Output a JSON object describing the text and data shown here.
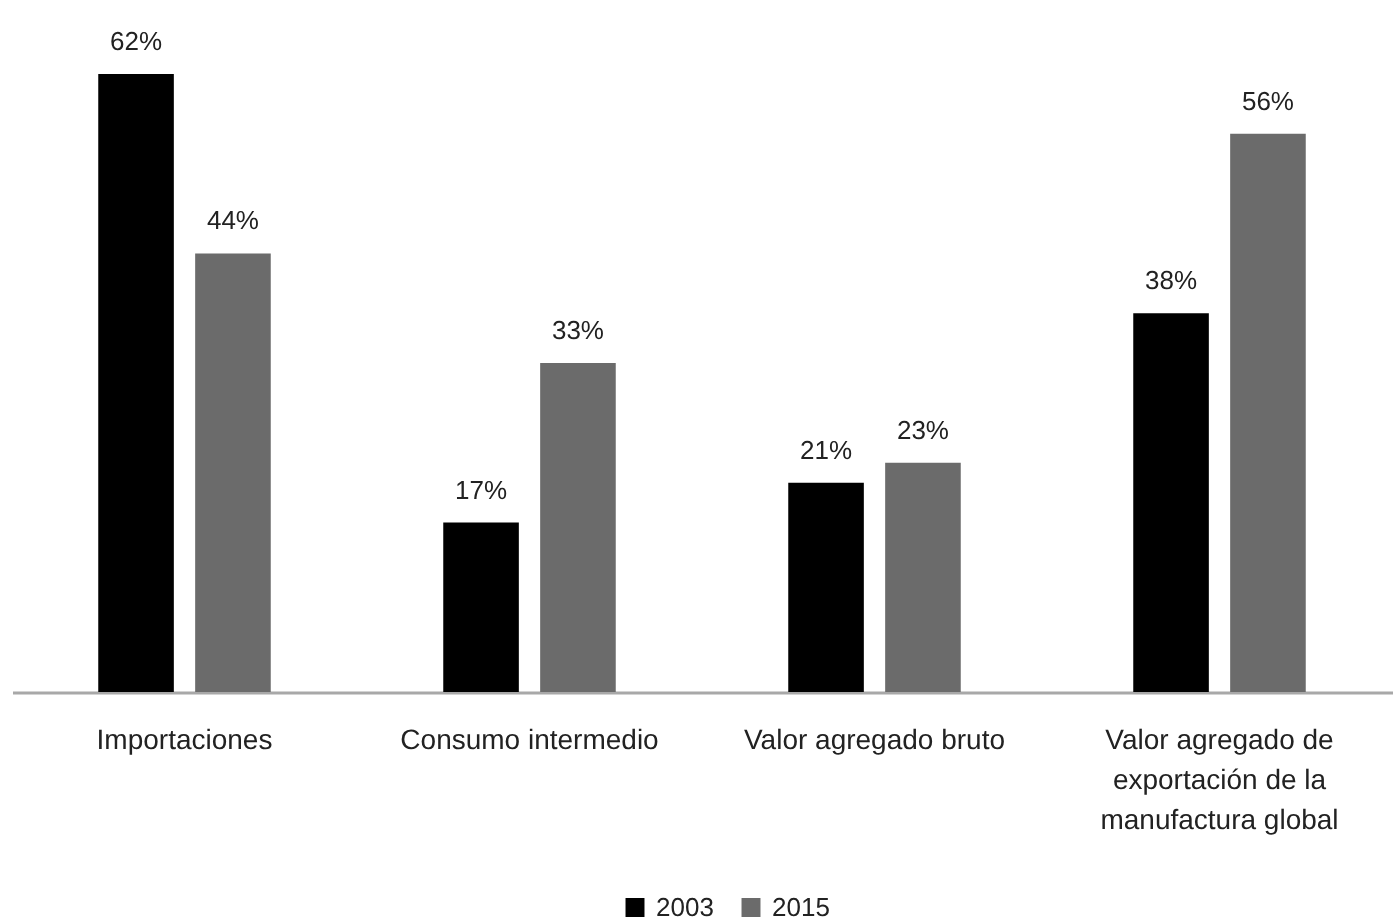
{
  "chart_data": {
    "type": "bar",
    "categories": [
      "Importaciones",
      "Consumo intermedio",
      "Valor agregado bruto",
      "Valor agregado de exportación de la manufactura global"
    ],
    "series": [
      {
        "name": "2003",
        "color": "#000000",
        "values": [
          62,
          17,
          21,
          38
        ],
        "value_labels": [
          "62%",
          "17%",
          "21%",
          "38%"
        ]
      },
      {
        "name": "2015",
        "color": "#6b6b6b",
        "values": [
          44,
          33,
          23,
          56
        ],
        "value_labels": [
          "44%",
          "33%",
          "23%",
          "56%"
        ]
      }
    ],
    "legend": "bottom",
    "tick_labels": "x",
    "grid": false
  }
}
